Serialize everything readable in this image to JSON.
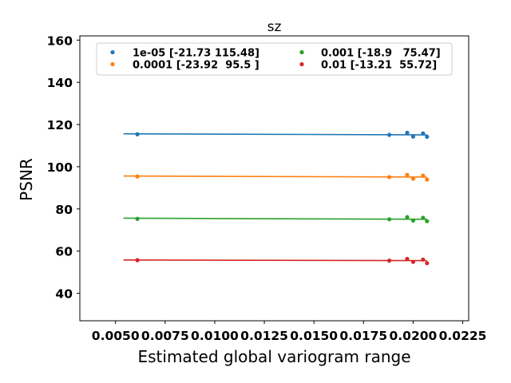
{
  "chart_data": {
    "type": "scatter",
    "title": "sz",
    "xlabel": "Estimated global variogram range",
    "ylabel": "PSNR",
    "xlim": [
      0.0032,
      0.0228
    ],
    "ylim": [
      27,
      162
    ],
    "xticks": [
      0.005,
      0.0075,
      0.01,
      0.0125,
      0.015,
      0.0175,
      0.02,
      0.0225
    ],
    "xtick_labels": [
      "0.0050",
      "0.0075",
      "0.0100",
      "0.0125",
      "0.0150",
      "0.0175",
      "0.0200",
      "0.0225"
    ],
    "yticks": [
      40,
      60,
      80,
      100,
      120,
      140,
      160
    ],
    "ytick_labels": [
      "40",
      "60",
      "80",
      "100",
      "120",
      "140",
      "160"
    ],
    "legend_position": "top",
    "series": [
      {
        "name": "1e-05 [-21.73 115.48]",
        "color": "#1f77b4",
        "points": [
          [
            0.0061,
            115.4
          ],
          [
            0.0188,
            115.1
          ],
          [
            0.0197,
            116.1
          ],
          [
            0.02,
            114.3
          ],
          [
            0.0205,
            115.8
          ],
          [
            0.0207,
            114.2
          ]
        ],
        "fit": [
          [
            0.0054,
            115.6
          ],
          [
            0.0207,
            115.1
          ]
        ]
      },
      {
        "name": "0.0001 [-23.92  95.5 ]",
        "color": "#ff7f0e",
        "points": [
          [
            0.0061,
            95.4
          ],
          [
            0.0188,
            95.1
          ],
          [
            0.0197,
            96.1
          ],
          [
            0.02,
            94.3
          ],
          [
            0.0205,
            95.8
          ],
          [
            0.0207,
            93.9
          ]
        ],
        "fit": [
          [
            0.0054,
            95.6
          ],
          [
            0.0207,
            95.1
          ]
        ]
      },
      {
        "name": "0.001 [-18.9   75.47]",
        "color": "#2ca02c",
        "points": [
          [
            0.0061,
            75.3
          ],
          [
            0.0188,
            75.1
          ],
          [
            0.0197,
            76.1
          ],
          [
            0.02,
            74.5
          ],
          [
            0.0205,
            75.8
          ],
          [
            0.0207,
            74.2
          ]
        ],
        "fit": [
          [
            0.0054,
            75.6
          ],
          [
            0.0207,
            75.1
          ]
        ]
      },
      {
        "name": "0.01 [-13.21  55.72]",
        "color": "#d62728",
        "points": [
          [
            0.0061,
            55.7
          ],
          [
            0.0188,
            55.5
          ],
          [
            0.0197,
            56.3
          ],
          [
            0.02,
            54.9
          ],
          [
            0.0205,
            56.0
          ],
          [
            0.0207,
            54.3
          ]
        ],
        "fit": [
          [
            0.0054,
            55.8
          ],
          [
            0.0207,
            55.5
          ]
        ]
      }
    ]
  }
}
